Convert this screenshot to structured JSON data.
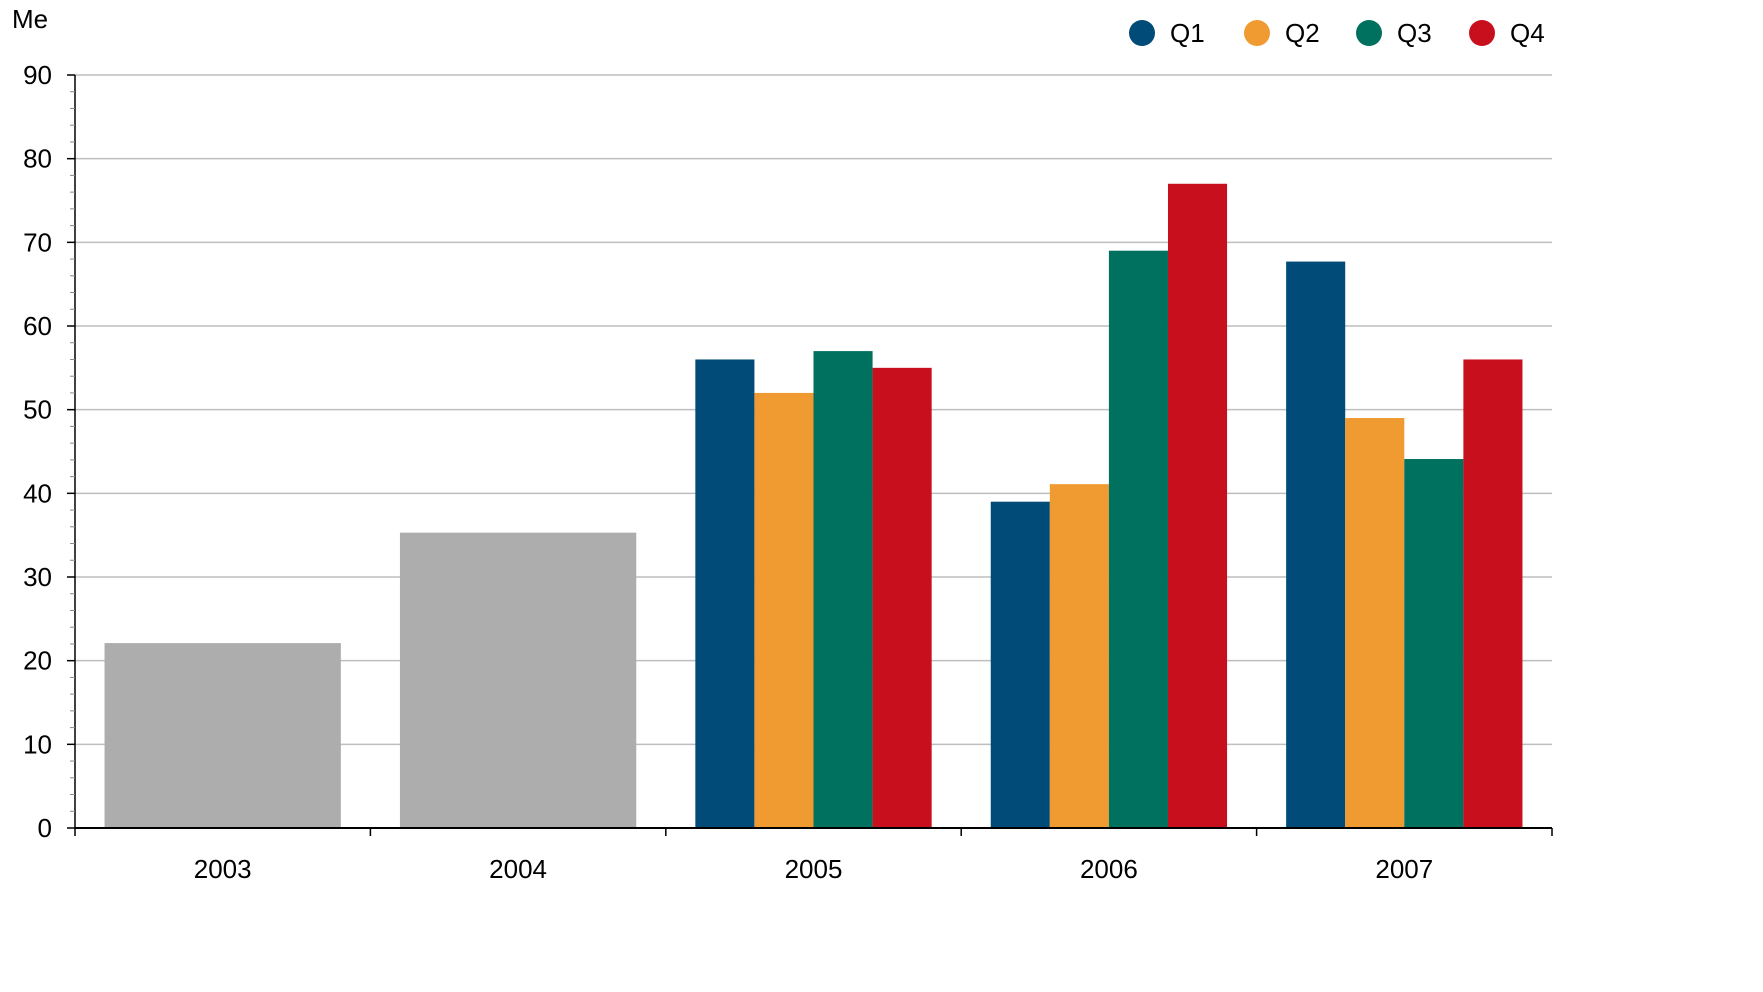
{
  "chart_data": {
    "type": "bar",
    "ylabel": "Me",
    "ylim": [
      0,
      90
    ],
    "y_major_step": 10,
    "y_minor_step": 2,
    "y_ticks": [
      "0",
      "10",
      "20",
      "30",
      "40",
      "50",
      "60",
      "70",
      "80",
      "90"
    ],
    "grid": true,
    "legend_position": "top-right",
    "categories": [
      "2003",
      "2004",
      "2005",
      "2006",
      "2007"
    ],
    "annual": [
      {
        "category": "2003",
        "value": 22.1,
        "color": "#adadad"
      },
      {
        "category": "2004",
        "value": 35.3,
        "color": "#adadad"
      }
    ],
    "series": [
      {
        "name": "Q1",
        "color": "#004b78",
        "values": [
          null,
          null,
          56,
          39,
          67.7
        ]
      },
      {
        "name": "Q2",
        "color": "#f09b32",
        "values": [
          null,
          null,
          52,
          41.1,
          49
        ]
      },
      {
        "name": "Q3",
        "color": "#00705f",
        "values": [
          null,
          null,
          57,
          69,
          44.1
        ]
      },
      {
        "name": "Q4",
        "color": "#c80f1e",
        "values": [
          null,
          null,
          55,
          77,
          56
        ]
      }
    ],
    "colors": {
      "gridline": "#bebebe",
      "axis": "#000000"
    }
  }
}
